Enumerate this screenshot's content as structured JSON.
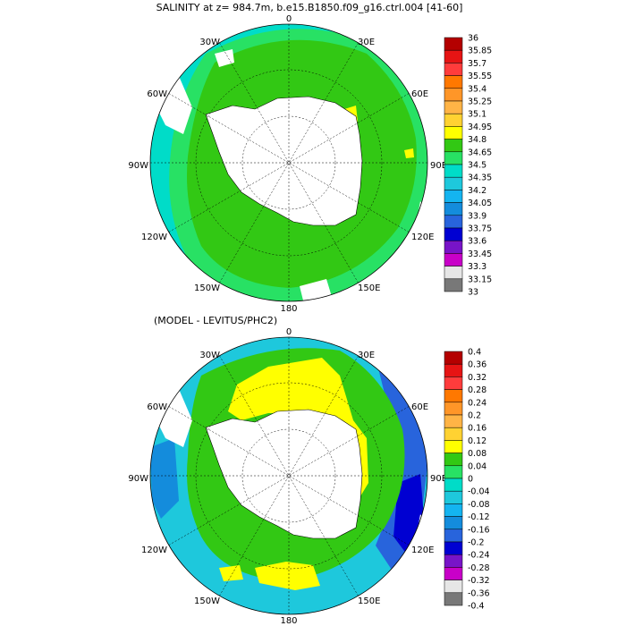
{
  "panels": [
    {
      "title": "SALINITY at z= 984.7m, b.e15.B1850.f09_g16.ctrl.004 [41-60]",
      "colorbar_labels": [
        "36",
        "35.85",
        "35.7",
        "35.55",
        "35.4",
        "35.25",
        "35.1",
        "34.95",
        "34.8",
        "34.65",
        "34.5",
        "34.35",
        "34.2",
        "34.05",
        "33.9",
        "33.75",
        "33.6",
        "33.45",
        "33.3",
        "33.15",
        "33"
      ],
      "colorbar_colors": [
        "#b40000",
        "#e61414",
        "#ff3c3c",
        "#ff7800",
        "#ff9628",
        "#ffb446",
        "#ffd232",
        "#ffff00",
        "#32c814",
        "#28e164",
        "#00dcc8",
        "#1ec8dc",
        "#14b4f0",
        "#148cdc",
        "#2864dc",
        "#0000d2",
        "#7814c8",
        "#c800c8",
        "#e6e6e6",
        "#787878"
      ]
    },
    {
      "title": "(MODEL - LEVITUS/PHC2)",
      "colorbar_labels": [
        "0.4",
        "0.36",
        "0.32",
        "0.28",
        "0.24",
        "0.2",
        "0.16",
        "0.12",
        "0.08",
        "0.04",
        "0",
        "-0.04",
        "-0.08",
        "-0.12",
        "-0.16",
        "-0.2",
        "-0.24",
        "-0.28",
        "-0.32",
        "-0.36",
        "-0.4"
      ],
      "colorbar_colors": [
        "#b40000",
        "#e61414",
        "#ff3c3c",
        "#ff7800",
        "#ff9628",
        "#ffb446",
        "#ffd232",
        "#ffff00",
        "#32c814",
        "#28e164",
        "#00dcc8",
        "#1ec8dc",
        "#14b4f0",
        "#148cdc",
        "#2864dc",
        "#0000d2",
        "#7814c8",
        "#c800c8",
        "#e6e6e6",
        "#787878"
      ]
    }
  ],
  "map_labels": {
    "lon_0": "0",
    "lon_30e": "30E",
    "lon_60e": "60E",
    "lon_90e": "90E",
    "lon_120e": "120E",
    "lon_150e": "150E",
    "lon_180": "180",
    "lon_150w": "150W",
    "lon_120w": "120W",
    "lon_90w": "90W",
    "lon_60w": "60W",
    "lon_30w": "30W"
  },
  "colors": {
    "ocean_high": "#32c814",
    "ocean_mid": "#28e164",
    "ocean_low": "#00dcc8",
    "ocean_lower": "#1ec8dc",
    "positive": "#ffff00",
    "negative_deep": "#0000d2",
    "land": "#ffffff"
  }
}
